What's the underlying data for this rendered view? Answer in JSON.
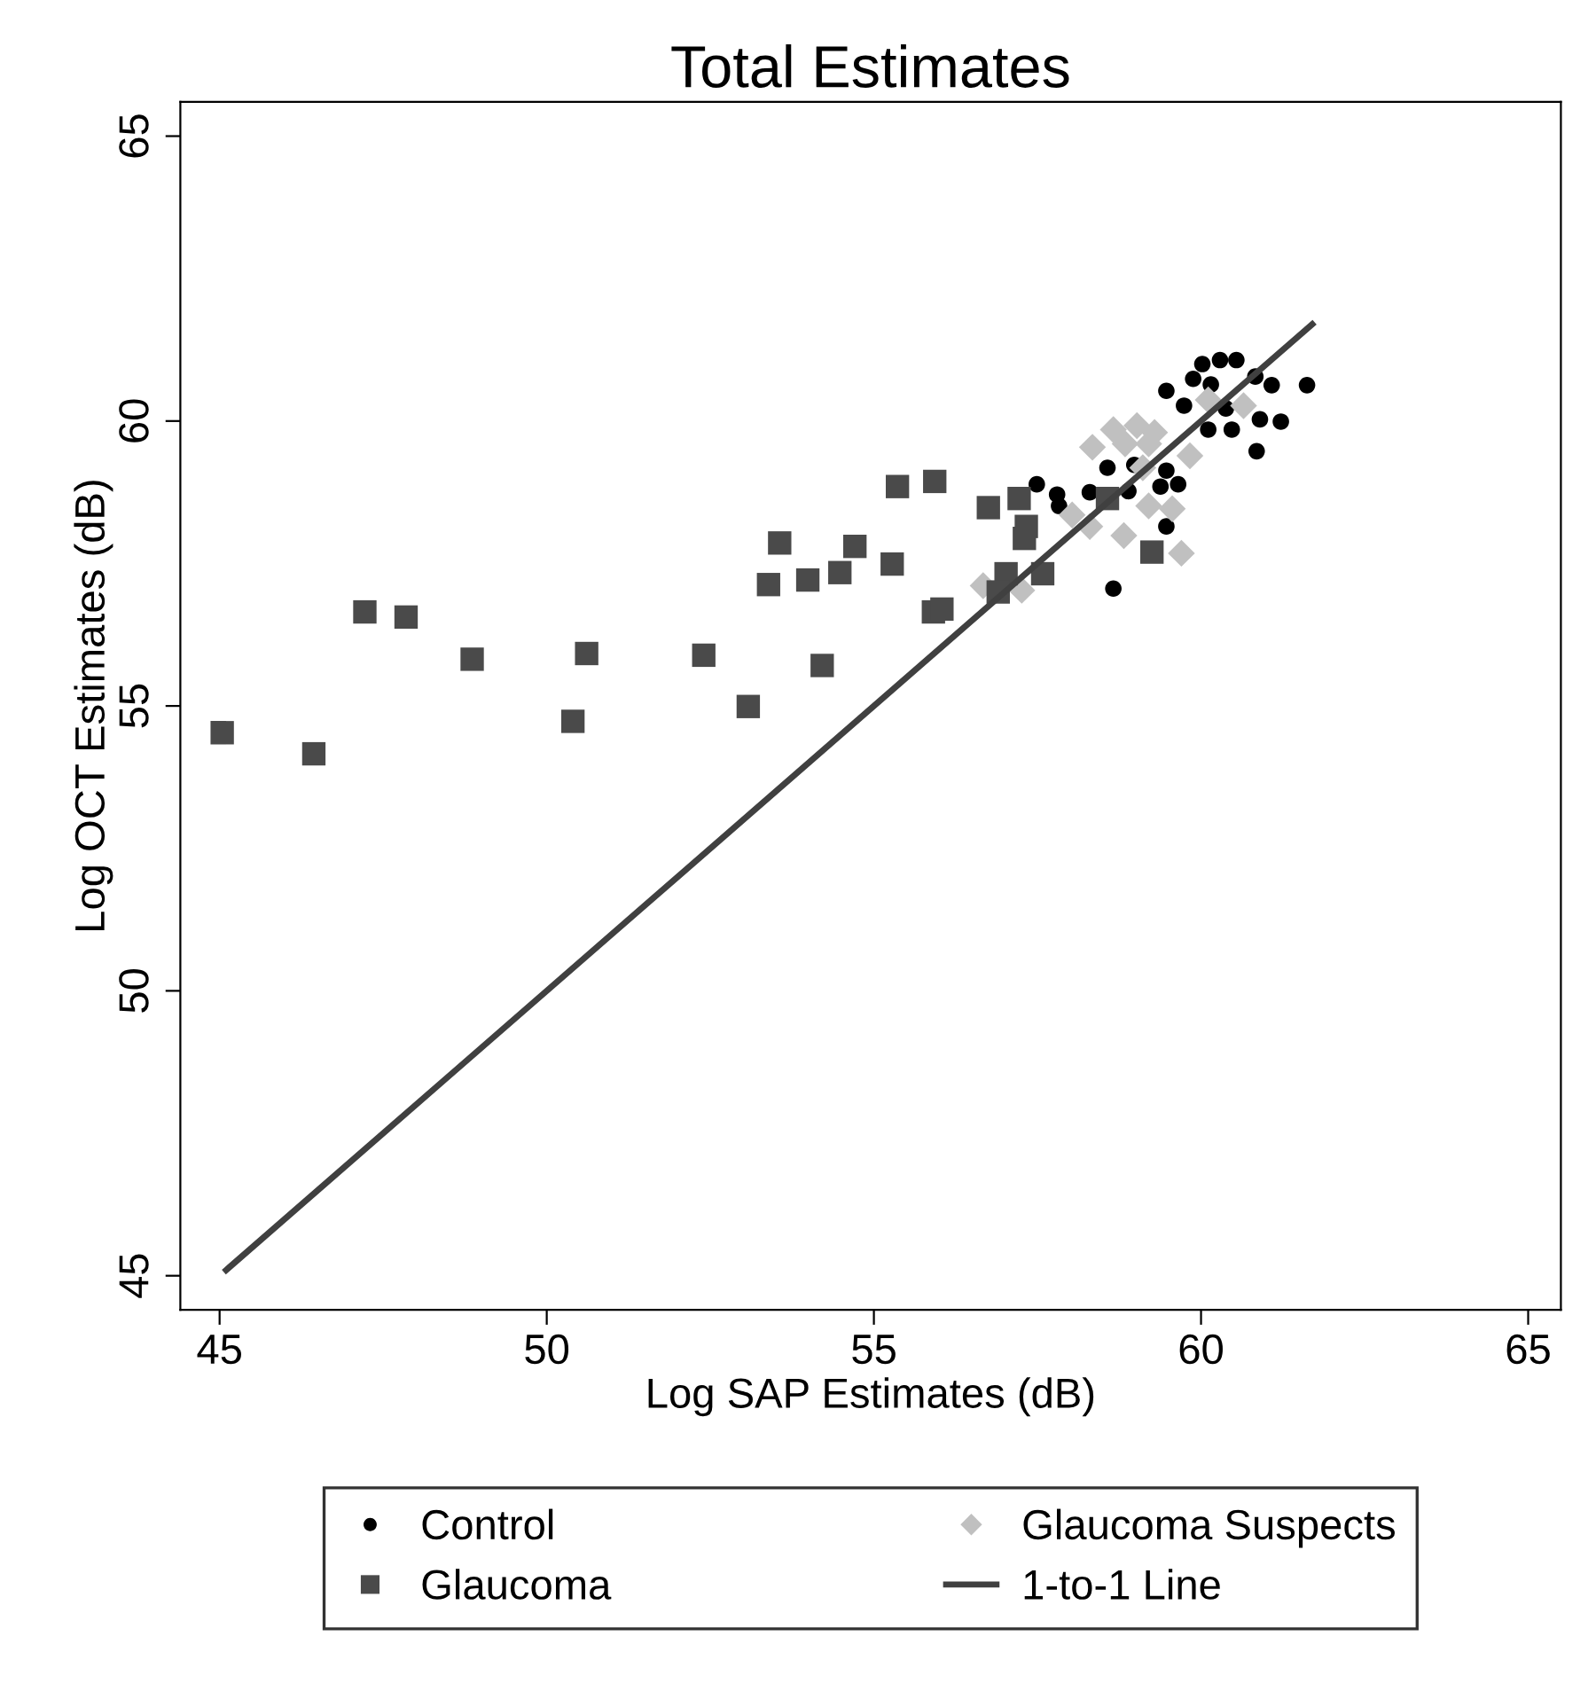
{
  "chart_data": {
    "type": "scatter",
    "title": "Total Estimates",
    "xlabel": "Log SAP Estimates (dB)",
    "ylabel": "Log OCT Estimates (dB)",
    "xlim": [
      44.4,
      65.5
    ],
    "ylim": [
      44.4,
      65.6
    ],
    "xticks": [
      45,
      50,
      55,
      60,
      65
    ],
    "yticks": [
      45,
      50,
      55,
      60,
      65
    ],
    "grid": false,
    "legend": "bottom",
    "series": [
      {
        "name": "Control",
        "marker": "circle",
        "color": "#000000",
        "x": [
          60.02,
          60.29,
          60.54,
          59.47,
          59.88,
          60.15,
          60.83,
          61.08,
          61.62,
          59.74,
          60.38,
          60.9,
          61.22,
          60.11,
          60.47,
          60.85,
          58.57,
          58.98,
          59.47,
          59.65,
          59.38,
          58.89,
          57.49,
          57.8,
          57.83,
          58.3,
          59.47,
          58.66
        ],
        "values": [
          61.0,
          61.07,
          61.07,
          60.53,
          60.74,
          60.64,
          60.78,
          60.63,
          60.63,
          60.27,
          60.22,
          60.03,
          59.99,
          59.85,
          59.85,
          59.47,
          59.18,
          59.23,
          59.13,
          58.89,
          58.85,
          58.77,
          58.89,
          58.71,
          58.51,
          58.75,
          58.15,
          57.06
        ]
      },
      {
        "name": "Glaucoma Suspects",
        "marker": "diamond",
        "color": "#c0c0c0",
        "x": [
          58.34,
          58.66,
          59.02,
          59.29,
          58.84,
          59.2,
          59.83,
          60.11,
          60.65,
          59.11,
          59.2,
          59.56,
          58.03,
          58.3,
          58.82,
          59.7,
          57.26,
          56.67
        ],
        "values": [
          59.54,
          59.85,
          59.92,
          59.8,
          59.6,
          59.6,
          59.39,
          60.37,
          60.27,
          59.18,
          58.51,
          58.46,
          58.35,
          58.15,
          57.99,
          57.68,
          57.03,
          57.11
        ]
      },
      {
        "name": "Glaucoma",
        "marker": "square",
        "color": "#4a4a4a",
        "x": [
          45.04,
          46.44,
          47.22,
          47.85,
          48.86,
          50.61,
          50.4,
          52.4,
          53.08,
          53.56,
          53.39,
          53.99,
          54.48,
          54.71,
          54.21,
          55.28,
          55.36,
          55.93,
          55.91,
          56.04,
          56.75,
          57.22,
          57.33,
          57.3,
          57.58,
          57.02,
          56.9,
          58.57,
          59.25
        ],
        "values": [
          54.53,
          54.16,
          56.65,
          56.56,
          55.82,
          55.92,
          54.73,
          55.89,
          54.99,
          57.86,
          57.13,
          57.21,
          57.34,
          57.8,
          55.71,
          57.49,
          58.85,
          58.94,
          56.65,
          56.7,
          58.48,
          58.64,
          58.15,
          57.94,
          57.32,
          57.32,
          57.0,
          58.64,
          57.7
        ]
      },
      {
        "name": "1-to-1 Line",
        "type": "line",
        "marker": "none",
        "line_style": "solid",
        "color": "#404040",
        "x": [
          45.1,
          61.7
        ],
        "values": [
          45.1,
          61.7
        ]
      }
    ]
  }
}
